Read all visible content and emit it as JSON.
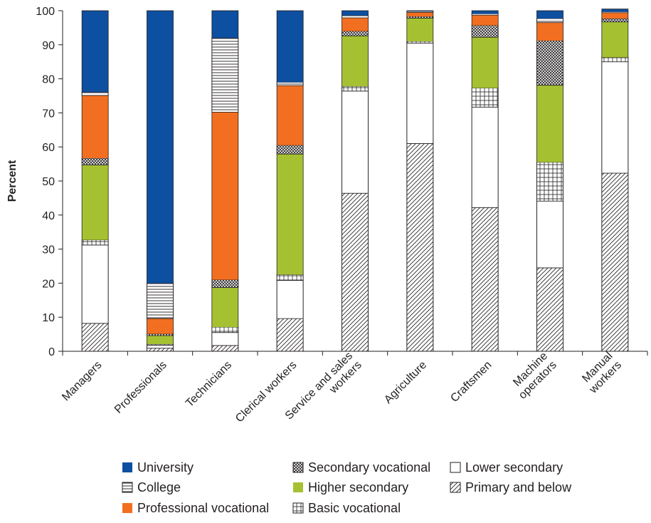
{
  "chart_data": {
    "type": "bar",
    "stacked": true,
    "ylabel": "Percent",
    "xlabel": "",
    "ylim": [
      0,
      100
    ],
    "yticks": [
      "0",
      "10",
      "20",
      "30",
      "40",
      "50",
      "60",
      "70",
      "80",
      "90",
      "100"
    ],
    "grid": false,
    "legend_position": "bottom",
    "categories": [
      "Managers",
      "Professionals",
      "Technicians",
      "Clerical workers",
      "Service and sales workers",
      "Agriculture",
      "Craftsmen",
      "Machine operators",
      "Manual workers"
    ],
    "category_lines": [
      [
        "Managers"
      ],
      [
        "Professionals"
      ],
      [
        "Technicians"
      ],
      [
        "Clerical workers"
      ],
      [
        "Service and sales",
        "workers"
      ],
      [
        "Agriculture"
      ],
      [
        "Craftsmen"
      ],
      [
        "Machine",
        "operators"
      ],
      [
        "Manual",
        "workers"
      ]
    ],
    "series": [
      {
        "name": "Primary and below",
        "pattern": "diagonal",
        "values": [
          8.2,
          0.9,
          1.7,
          9.6,
          46.4,
          61.0,
          42.2,
          24.5,
          52.3
        ]
      },
      {
        "name": "Lower secondary",
        "pattern": "white",
        "values": [
          23.0,
          0.9,
          3.8,
          11.2,
          30.0,
          29.5,
          29.5,
          19.6,
          32.7
        ]
      },
      {
        "name": "Basic vocational",
        "pattern": "grid",
        "values": [
          1.5,
          0.3,
          1.6,
          1.7,
          1.4,
          0.5,
          5.6,
          11.4,
          1.3
        ]
      },
      {
        "name": "Higher secondary",
        "pattern": "green",
        "values": [
          22.0,
          2.5,
          11.6,
          35.4,
          14.8,
          6.8,
          14.9,
          22.6,
          10.4
        ]
      },
      {
        "name": "Secondary vocational",
        "pattern": "crosshatch",
        "values": [
          2.0,
          0.5,
          2.3,
          2.6,
          1.4,
          0.5,
          3.5,
          13.1,
          1.0
        ]
      },
      {
        "name": "Professional vocational",
        "pattern": "orange",
        "values": [
          18.4,
          4.5,
          49.2,
          17.5,
          3.9,
          1.2,
          3.0,
          5.3,
          1.7
        ]
      },
      {
        "name": "College",
        "pattern": "horizontal",
        "values": [
          1.0,
          10.4,
          21.8,
          1.0,
          0.7,
          0.3,
          0.4,
          1.2,
          0.3
        ]
      },
      {
        "name": "University",
        "pattern": "blue",
        "values": [
          23.9,
          80.0,
          8.0,
          21.0,
          1.4,
          0.2,
          0.9,
          2.3,
          0.8
        ]
      }
    ]
  },
  "legend": {
    "rows": [
      [
        "University",
        "Secondary vocational",
        "Lower secondary"
      ],
      [
        "College",
        "Higher secondary",
        "Primary and below"
      ],
      [
        "Professional vocational",
        "Basic vocational"
      ]
    ]
  },
  "colors": {
    "university": "#0d4fa0",
    "professional_vocational": "#f26f21",
    "higher_secondary": "#a5c132",
    "axis": "#231f20"
  }
}
